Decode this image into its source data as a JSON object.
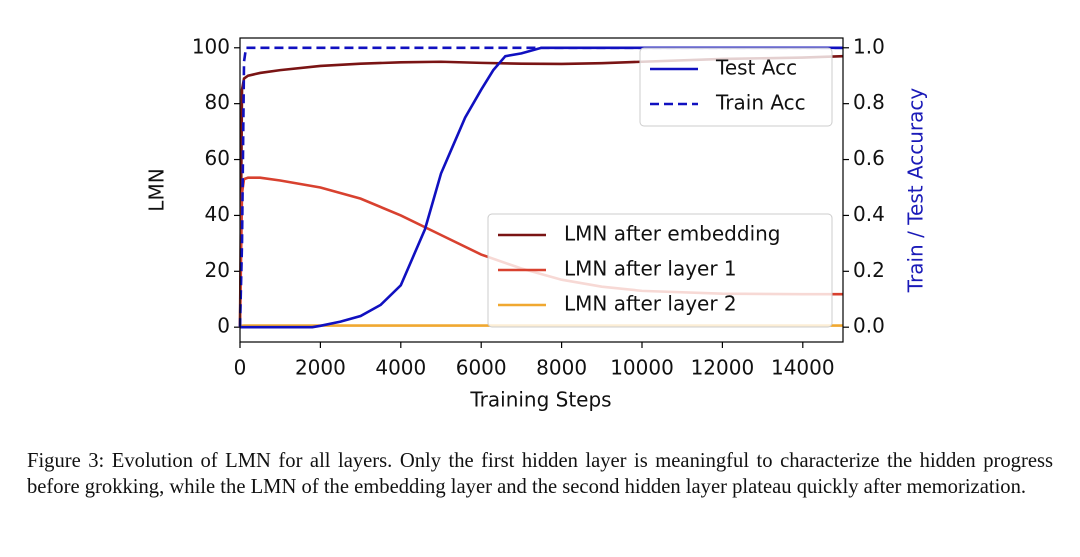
{
  "chart_data": {
    "type": "line",
    "xlabel": "Training Steps",
    "ylabel": "LMN",
    "y2label": "Train / Test Accuracy",
    "xlim": [
      0,
      15000
    ],
    "xticks": [
      0,
      2000,
      4000,
      6000,
      8000,
      10000,
      12000,
      14000
    ],
    "ylim": [
      -5.3,
      103.5
    ],
    "yticks": [
      0,
      20,
      40,
      60,
      80,
      100
    ],
    "y2lim": [
      -0.053,
      1.035
    ],
    "y2ticks": [
      {
        "value": 0,
        "label": "0.0"
      },
      0.2,
      0.4,
      0.6,
      0.8,
      {
        "value": 1,
        "label": "1.0"
      }
    ],
    "y2color": "#1a1ab8",
    "legend": {
      "y": "lower right",
      "y2": "upper right"
    },
    "series": [
      {
        "name": "LMN after embedding",
        "color": "#7a1414",
        "x": [
          0,
          50,
          100,
          200,
          500,
          1000,
          2000,
          3000,
          4000,
          5000,
          6000,
          7000,
          8000,
          9000,
          10000,
          12000,
          14000,
          15000
        ],
        "values": [
          0,
          85,
          89,
          90,
          91,
          92,
          93.5,
          94.3,
          94.8,
          95,
          94.6,
          94.3,
          94.2,
          94.5,
          95,
          96,
          96.5,
          97
        ]
      },
      {
        "name": "LMN after layer 1",
        "color": "#d8412f",
        "x": [
          0,
          50,
          100,
          200,
          500,
          1000,
          2000,
          3000,
          4000,
          5000,
          6000,
          7000,
          8000,
          9000,
          10000,
          12000,
          14000,
          15000
        ],
        "values": [
          0,
          48,
          53,
          53.5,
          53.5,
          52.5,
          50,
          46,
          40,
          33,
          26,
          21,
          17,
          14.5,
          13,
          12,
          11.8,
          11.8
        ]
      },
      {
        "name": "LMN after layer 2",
        "color": "#f0a830",
        "x": [
          0,
          50,
          100,
          1000,
          5000,
          10000,
          15000
        ],
        "values": [
          0,
          0.5,
          0.6,
          0.6,
          0.6,
          0.6,
          0.6
        ]
      },
      {
        "name": "Test Acc",
        "color": "#1010c0",
        "axis": "y2",
        "x": [
          0,
          1000,
          1800,
          2000,
          2500,
          3000,
          3500,
          4000,
          4300,
          4600,
          4800,
          5000,
          5300,
          5600,
          6000,
          6300,
          6600,
          7000,
          7500,
          8000,
          10000,
          15000
        ],
        "values": [
          0,
          0,
          0,
          0.005,
          0.02,
          0.04,
          0.08,
          0.15,
          0.25,
          0.35,
          0.45,
          0.55,
          0.65,
          0.75,
          0.85,
          0.92,
          0.97,
          0.98,
          1,
          1,
          1,
          1
        ]
      },
      {
        "name": "Train Acc",
        "color": "#1010c0",
        "axis": "y2",
        "dashed": true,
        "x": [
          0,
          50,
          100,
          150,
          15000
        ],
        "values": [
          0,
          0.3,
          0.95,
          1,
          1
        ]
      }
    ]
  },
  "caption": "Figure 3: Evolution of LMN for all layers. Only the first hidden layer is meaningful to characterize the hidden progress before grokking, while the LMN of the embedding layer and the second hidden layer plateau quickly after memorization."
}
